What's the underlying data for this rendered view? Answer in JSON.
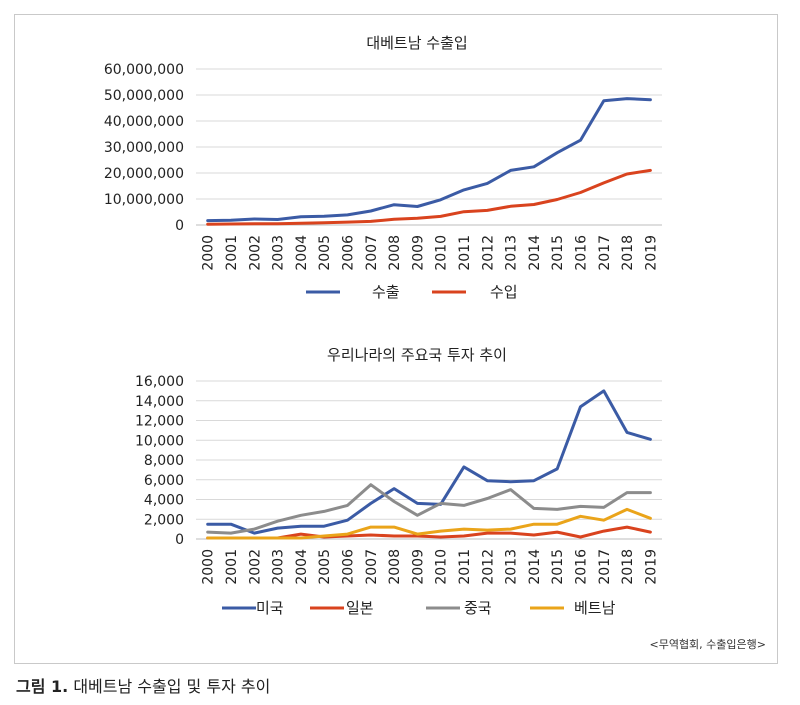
{
  "caption": {
    "label": "그림 1.",
    "text": "대베트남 수출입 및 투자 추이"
  },
  "source": "<무역협회, 수출입은행>",
  "chart_data": [
    {
      "type": "line",
      "title": "대베트남 수출입",
      "xlabel": "",
      "ylabel": "",
      "x": [
        "2000",
        "2001",
        "2002",
        "2003",
        "2004",
        "2005",
        "2006",
        "2007",
        "2008",
        "2009",
        "2010",
        "2011",
        "2012",
        "2013",
        "2014",
        "2015",
        "2016",
        "2017",
        "2018",
        "2019"
      ],
      "ylim": [
        0,
        60000000
      ],
      "yticks": [
        0,
        10000000,
        20000000,
        30000000,
        40000000,
        50000000,
        60000000
      ],
      "ytick_labels": [
        "0",
        "10,000,000",
        "20,000,000",
        "30,000,000",
        "40,000,000",
        "50,000,000",
        "60,000,000"
      ],
      "grid": true,
      "legend": "bottom",
      "series": [
        {
          "name": "수출",
          "color": "#3b5ba5",
          "values": [
            1700000,
            1800000,
            2300000,
            2100000,
            3200000,
            3400000,
            3900000,
            5400000,
            7800000,
            7100000,
            9700000,
            13500000,
            16000000,
            21000000,
            22400000,
            27800000,
            32600000,
            47800000,
            48600000,
            48200000
          ]
        },
        {
          "name": "수입",
          "color": "#d9431e",
          "values": [
            300000,
            400000,
            500000,
            500000,
            700000,
            900000,
            1100000,
            1400000,
            2200000,
            2600000,
            3300000,
            5100000,
            5600000,
            7200000,
            7900000,
            9800000,
            12500000,
            16200000,
            19600000,
            21000000
          ]
        }
      ]
    },
    {
      "type": "line",
      "title": "우리나라의 주요국 투자 추이",
      "xlabel": "",
      "ylabel": "",
      "x": [
        "2000",
        "2001",
        "2002",
        "2003",
        "2004",
        "2005",
        "2006",
        "2007",
        "2008",
        "2009",
        "2010",
        "2011",
        "2012",
        "2013",
        "2014",
        "2015",
        "2016",
        "2017",
        "2018",
        "2019"
      ],
      "ylim": [
        0,
        16000
      ],
      "yticks": [
        0,
        2000,
        4000,
        6000,
        8000,
        10000,
        12000,
        14000,
        16000
      ],
      "ytick_labels": [
        "0",
        "2,000",
        "4,000",
        "6,000",
        "8,000",
        "10,000",
        "12,000",
        "14,000",
        "16,000"
      ],
      "grid": true,
      "legend": "bottom",
      "series": [
        {
          "name": "미국",
          "color": "#3b5ba5",
          "values": [
            1500,
            1500,
            600,
            1100,
            1300,
            1300,
            1900,
            3600,
            5100,
            3600,
            3500,
            7300,
            5900,
            5800,
            5900,
            7100,
            13400,
            15000,
            10800,
            10100
          ]
        },
        {
          "name": "일본",
          "color": "#d9431e",
          "values": [
            100,
            100,
            100,
            100,
            500,
            200,
            300,
            400,
            300,
            300,
            200,
            300,
            600,
            600,
            400,
            700,
            200,
            800,
            1200,
            700
          ]
        },
        {
          "name": "중국",
          "color": "#8c8c8c",
          "values": [
            700,
            600,
            1000,
            1800,
            2400,
            2800,
            3400,
            5500,
            3800,
            2400,
            3600,
            3400,
            4100,
            5000,
            3100,
            3000,
            3300,
            3200,
            4700,
            4700
          ]
        },
        {
          "name": "베트남",
          "color": "#eaa41a",
          "values": [
            100,
            100,
            100,
            100,
            100,
            300,
            500,
            1200,
            1200,
            500,
            800,
            1000,
            900,
            1000,
            1500,
            1500,
            2300,
            1900,
            3000,
            2100
          ]
        }
      ]
    }
  ]
}
